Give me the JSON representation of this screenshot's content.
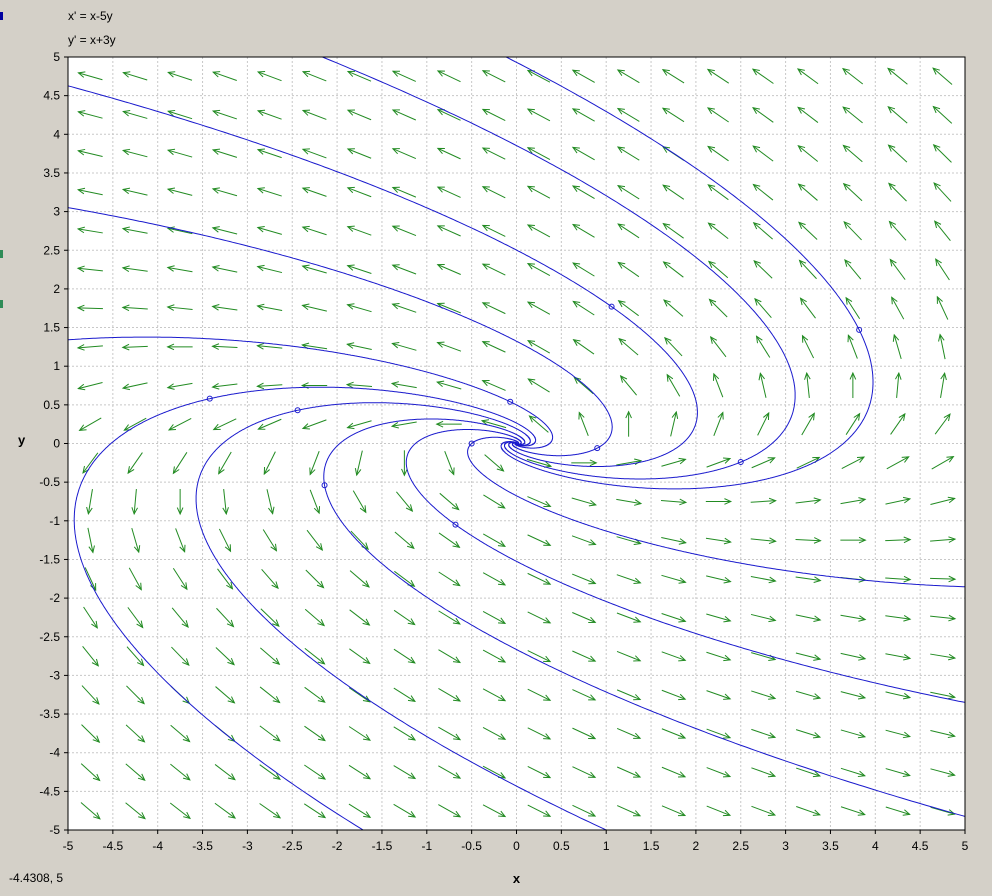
{
  "header": {
    "equation_x": "x' = x-5y",
    "equation_y": "y' = x+3y"
  },
  "status": {
    "cursor_readout": "-4.4308,  5"
  },
  "colors": {
    "window_bg": "#d4d0c8",
    "plot_bg": "#ffffff",
    "grid": "#c8c8c8",
    "field_arrows": "#228b22",
    "trajectories": "#1a1acd"
  },
  "chart_data": {
    "type": "phase-portrait",
    "system": {
      "dx": [
        1,
        -5
      ],
      "dy": [
        1,
        3
      ]
    },
    "xlabel": "x",
    "ylabel": "y",
    "xlim": [
      -5,
      5
    ],
    "ylim": [
      -5,
      5
    ],
    "xticks": [
      "-5",
      "-4.5",
      "-4",
      "-3.5",
      "-3",
      "-2.5",
      "-2",
      "-1.5",
      "-1",
      "-0.5",
      "0",
      "0.5",
      "1",
      "1.5",
      "2",
      "2.5",
      "3",
      "3.5",
      "4",
      "4.5",
      "5"
    ],
    "yticks": [
      "5",
      "4.5",
      "4",
      "3.5",
      "3",
      "2.5",
      "2",
      "1.5",
      "1",
      "0.5",
      "0",
      "-0.5",
      "-1",
      "-1.5",
      "-2",
      "-2.5",
      "-3",
      "-3.5",
      "-4",
      "-4.5",
      "-5"
    ],
    "grid": true,
    "field_grid": {
      "x_start": -4.75,
      "y_start": -4.75,
      "step": 0.5,
      "count": 20
    },
    "initial_points": [
      [
        -3.42,
        0.58
      ],
      [
        -2.44,
        0.43
      ],
      [
        -2.14,
        -0.54
      ],
      [
        -0.5,
        0.0
      ],
      [
        -0.68,
        -1.05
      ],
      [
        -0.07,
        0.54
      ],
      [
        0.9,
        -0.06
      ],
      [
        1.06,
        1.77
      ],
      [
        2.5,
        -0.24
      ],
      [
        3.82,
        1.47
      ]
    ]
  }
}
